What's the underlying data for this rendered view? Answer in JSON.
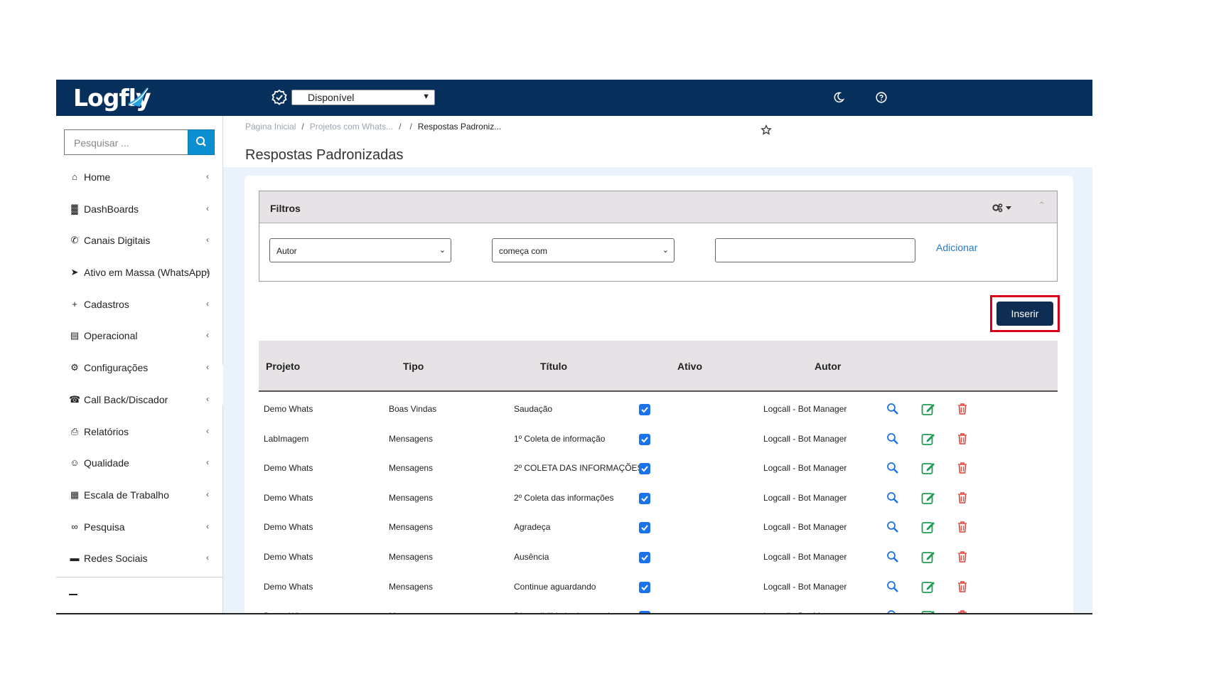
{
  "app": {
    "logo_text": "Logfly",
    "status_value": "Disponível"
  },
  "sidebar": {
    "search_placeholder": "Pesquisar ...",
    "items": [
      {
        "label": "Home",
        "icon": "home-icon",
        "chevron": true
      },
      {
        "label": "DashBoards",
        "icon": "bar-chart-icon",
        "chevron": true
      },
      {
        "label": "Canais Digitais",
        "icon": "whatsapp-icon",
        "chevron": true
      },
      {
        "label": "Ativo em Massa (WhatsApp)",
        "icon": "paper-plane-icon",
        "chevron": true
      },
      {
        "label": "Cadastros",
        "icon": "plus-icon",
        "chevron": true
      },
      {
        "label": "Operacional",
        "icon": "briefcase-icon",
        "chevron": true
      },
      {
        "label": "Configurações",
        "icon": "gear-icon",
        "chevron": true
      },
      {
        "label": "Call Back/Discador",
        "icon": "phone-icon",
        "chevron": true
      },
      {
        "label": "Relatórios",
        "icon": "printer-icon",
        "chevron": true
      },
      {
        "label": "Qualidade",
        "icon": "smile-icon",
        "chevron": true
      },
      {
        "label": "Escala de Trabalho",
        "icon": "calendar-icon",
        "chevron": true
      },
      {
        "label": "Pesquisa",
        "icon": "binoculars-icon",
        "chevron": true
      },
      {
        "label": "Redes Sociais",
        "icon": "comments-icon",
        "chevron": true
      }
    ]
  },
  "breadcrumb": {
    "home": "Página Inicial",
    "parent": "Projetos com Whats...",
    "current": "Respostas Padroniz..."
  },
  "page": {
    "title": "Respostas Padronizadas"
  },
  "filters": {
    "title": "Filtros",
    "field_value": "Autor",
    "operator_value": "começa com",
    "text_value": "",
    "add_label": "Adicionar"
  },
  "insert_label": "Inserir",
  "table": {
    "columns": [
      "Projeto",
      "Tipo",
      "Título",
      "Ativo",
      "Autor"
    ],
    "rows": [
      {
        "projeto": "Demo Whats",
        "tipo": "Boas Vindas",
        "titulo": "Saudação",
        "ativo": true,
        "autor": "Logcall - Bot Manager"
      },
      {
        "projeto": "LabImagem",
        "tipo": "Mensagens",
        "titulo": "1º Coleta de informação",
        "ativo": true,
        "autor": "Logcall - Bot Manager"
      },
      {
        "projeto": "Demo Whats",
        "tipo": "Mensagens",
        "titulo": "2º COLETA DAS INFORMAÇÕES",
        "ativo": true,
        "autor": "Logcall - Bot Manager"
      },
      {
        "projeto": "Demo Whats",
        "tipo": "Mensagens",
        "titulo": "2º Coleta das informações",
        "ativo": true,
        "autor": "Logcall - Bot Manager"
      },
      {
        "projeto": "Demo Whats",
        "tipo": "Mensagens",
        "titulo": "Agradeça",
        "ativo": true,
        "autor": "Logcall - Bot Manager"
      },
      {
        "projeto": "Demo Whats",
        "tipo": "Mensagens",
        "titulo": "Ausência",
        "ativo": true,
        "autor": "Logcall - Bot Manager"
      },
      {
        "projeto": "Demo Whats",
        "tipo": "Mensagens",
        "titulo": "Continue aguardando",
        "ativo": true,
        "autor": "Logcall - Bot Manager"
      },
      {
        "projeto": "Demo Whats",
        "tipo": "Mensagens",
        "titulo": "Disponibilidade de agenda",
        "ativo": true,
        "autor": "Logcall - Bot Manager"
      }
    ]
  },
  "colors": {
    "topbar": "#062f5b",
    "accent_blue": "#0c8fd0",
    "edit_green": "#1f9d55",
    "delete_red": "#e0453a",
    "highlight_red": "#d9001b"
  }
}
